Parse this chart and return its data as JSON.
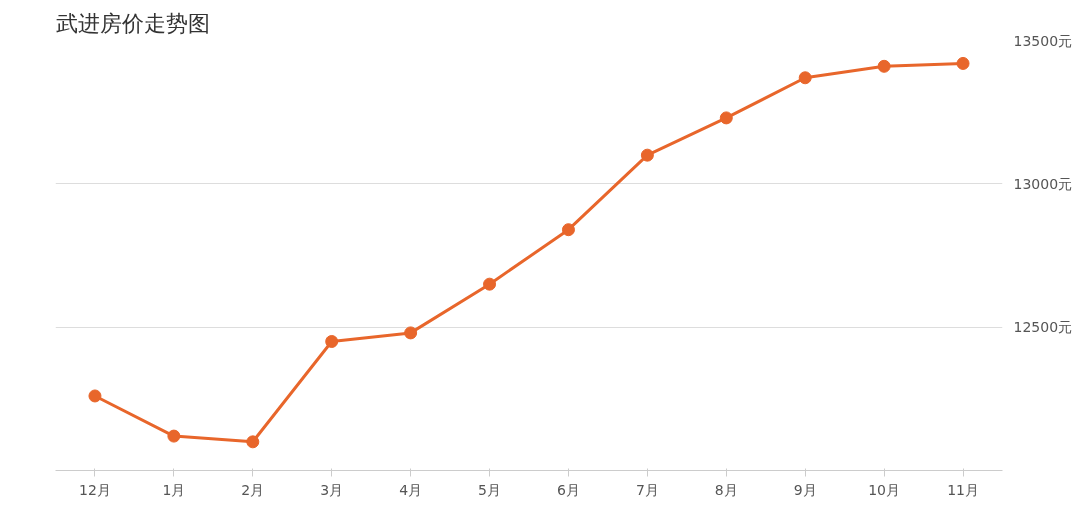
{
  "chart_data": {
    "type": "line",
    "title": "武进房价走势图",
    "categories": [
      "12月",
      "1月",
      "2月",
      "3月",
      "4月",
      "5月",
      "6月",
      "7月",
      "8月",
      "9月",
      "10月",
      "11月"
    ],
    "series": [
      {
        "color": "#e8662b",
        "values": [
          12260,
          12120,
          12100,
          12450,
          12480,
          12650,
          12840,
          13100,
          13230,
          13370,
          13410,
          13420
        ]
      }
    ],
    "ylim": [
      12000,
      13500
    ],
    "yticks": [
      {
        "value": 12500,
        "label": "12500元"
      },
      {
        "value": 13000,
        "label": "13000元"
      },
      {
        "value": 13500,
        "label": "13500元"
      }
    ],
    "grid": "y",
    "marker": "circle",
    "line_style": "solid"
  }
}
